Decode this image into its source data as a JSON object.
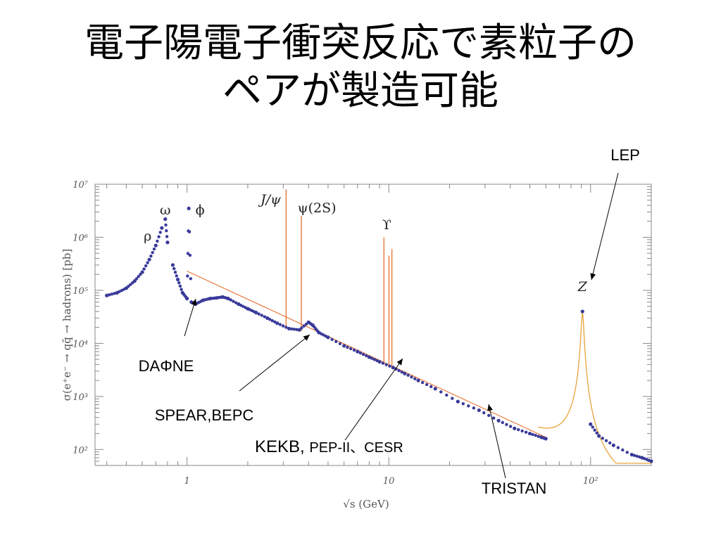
{
  "slide": {
    "title_line1": "電子陽電子衝突反応で素粒子の",
    "title_line2": "ペアが製造可能"
  },
  "chart_data": {
    "type": "scatter",
    "xscale": "log",
    "yscale": "log",
    "xlabel": "√s (GeV)",
    "ylabel": "σ(e⁺e⁻ → qq̄ → hadrons) [pb]",
    "xlim": [
      0.35,
      200
    ],
    "ylim": [
      50,
      10000000
    ],
    "x_ticks": [
      "1",
      "10",
      "10²"
    ],
    "y_ticks": [
      "10²",
      "10³",
      "10⁴",
      "10⁵",
      "10⁶",
      "10⁷"
    ],
    "resonances": [
      {
        "label": "ρ",
        "x": 0.68,
        "y": 700000
      },
      {
        "label": "ω",
        "x": 0.78,
        "y": 3000000
      },
      {
        "label": "ϕ",
        "x": 1.02,
        "y": 3000000
      },
      {
        "label": "J/ψ",
        "x": 3.1,
        "y": 8000000
      },
      {
        "label": "ψ(2S)",
        "x": 3.69,
        "y": 3000000
      },
      {
        "label": "ϒ",
        "x": 9.46,
        "y": 1000000
      },
      {
        "label": "Z",
        "x": 91.2,
        "y": 40000
      }
    ],
    "annotations": [
      {
        "label": "LEP",
        "x": 91.2
      },
      {
        "label": "DAΦNE",
        "x": 1.02
      },
      {
        "label": "SPEAR,BEPC",
        "x": 3.9
      },
      {
        "label": "KEKB, ",
        "label_small": "PEP-II、CESR",
        "x": 10.6
      },
      {
        "label": "TRISTAN",
        "x": 30
      }
    ],
    "series": [
      {
        "values": [
          [
            0.4,
            80000
          ],
          [
            0.45,
            90000
          ],
          [
            0.5,
            110000
          ],
          [
            0.55,
            150000
          ],
          [
            0.6,
            220000
          ],
          [
            0.65,
            380000
          ],
          [
            0.7,
            700000
          ],
          [
            0.75,
            1500000
          ],
          [
            0.78,
            2200000
          ],
          [
            0.8,
            800000
          ],
          [
            0.85,
            300000
          ],
          [
            0.9,
            160000
          ],
          [
            0.95,
            90000
          ],
          [
            1.0,
            70000
          ],
          [
            1.02,
            3500000
          ],
          [
            1.05,
            60000
          ],
          [
            1.1,
            55000
          ],
          [
            1.2,
            65000
          ],
          [
            1.3,
            70000
          ],
          [
            1.4,
            72000
          ],
          [
            1.5,
            75000
          ],
          [
            1.6,
            70000
          ],
          [
            1.8,
            55000
          ],
          [
            2.0,
            45000
          ],
          [
            2.2,
            38000
          ],
          [
            2.5,
            30000
          ],
          [
            2.8,
            24000
          ],
          [
            3.2,
            19000
          ],
          [
            3.6,
            18000
          ],
          [
            4.0,
            25000
          ],
          [
            4.2,
            22000
          ],
          [
            4.5,
            16000
          ],
          [
            5.0,
            13000
          ],
          [
            6.0,
            9000
          ],
          [
            7.0,
            7000
          ],
          [
            8.0,
            5500
          ],
          [
            9.0,
            4500
          ],
          [
            10.5,
            3500
          ],
          [
            12,
            2700
          ],
          [
            14,
            2000
          ],
          [
            17,
            1400
          ],
          [
            22,
            800
          ],
          [
            28,
            550
          ],
          [
            35,
            350
          ],
          [
            42,
            250
          ],
          [
            50,
            200
          ],
          [
            57,
            170
          ],
          [
            60,
            160
          ]
        ]
      },
      {
        "values": [
          [
            91.2,
            40000
          ],
          [
            100,
            300
          ],
          [
            110,
            180
          ],
          [
            130,
            120
          ],
          [
            160,
            80
          ],
          [
            180,
            70
          ],
          [
            200,
            60
          ]
        ]
      }
    ]
  }
}
